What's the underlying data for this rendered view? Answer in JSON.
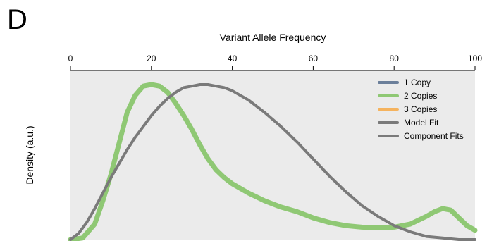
{
  "panel_label": "D",
  "chart_data": {
    "type": "line",
    "title": "",
    "xlabel": "Variant Allele Frequency",
    "ylabel": "Density (a.u.)",
    "xlim": [
      0,
      100
    ],
    "ylim": [
      0,
      1
    ],
    "xticks": [
      0,
      20,
      40,
      60,
      80,
      100
    ],
    "x_axis_position": "top",
    "background": "#ebebeb",
    "grid": false,
    "legend_position": "top-right",
    "legend": [
      {
        "name": "1 Copy",
        "color": "#6b7f9a"
      },
      {
        "name": "2 Copies",
        "color": "#8fc874"
      },
      {
        "name": "3 Copies",
        "color": "#f5b35e"
      },
      {
        "name": "Model Fit",
        "color": "#7a7a7a"
      },
      {
        "name": "Component Fits",
        "color": "#7a7a7a"
      }
    ],
    "series": [
      {
        "name": "2 Copies",
        "color": "#8fc874",
        "x": [
          0,
          3,
          6,
          8,
          10,
          12,
          14,
          16,
          18,
          20,
          22,
          24,
          26,
          28,
          30,
          32,
          34,
          36,
          38,
          40,
          44,
          48,
          52,
          56,
          60,
          64,
          68,
          72,
          76,
          80,
          84,
          88,
          90,
          92,
          94,
          96,
          98,
          100
        ],
        "y": [
          0,
          0.01,
          0.1,
          0.25,
          0.42,
          0.62,
          0.82,
          0.93,
          0.99,
          1.0,
          0.99,
          0.95,
          0.88,
          0.8,
          0.71,
          0.61,
          0.52,
          0.45,
          0.4,
          0.36,
          0.3,
          0.25,
          0.21,
          0.18,
          0.14,
          0.11,
          0.09,
          0.08,
          0.075,
          0.08,
          0.1,
          0.15,
          0.18,
          0.2,
          0.19,
          0.14,
          0.09,
          0.06
        ]
      },
      {
        "name": "Model Fit",
        "color": "#7a7a7a",
        "x": [
          0,
          2,
          4,
          6,
          8,
          10,
          12,
          14,
          16,
          18,
          20,
          22,
          24,
          26,
          28,
          30,
          32,
          34,
          36,
          38,
          40,
          44,
          48,
          52,
          56,
          60,
          64,
          68,
          72,
          76,
          80,
          84,
          88,
          92,
          96,
          100
        ],
        "y": [
          0,
          0.04,
          0.11,
          0.2,
          0.3,
          0.4,
          0.49,
          0.58,
          0.66,
          0.73,
          0.8,
          0.86,
          0.91,
          0.95,
          0.98,
          0.99,
          1.0,
          1.0,
          0.99,
          0.98,
          0.96,
          0.9,
          0.82,
          0.73,
          0.63,
          0.52,
          0.41,
          0.31,
          0.22,
          0.15,
          0.09,
          0.05,
          0.02,
          0.01,
          0.0,
          0.0
        ]
      }
    ]
  }
}
